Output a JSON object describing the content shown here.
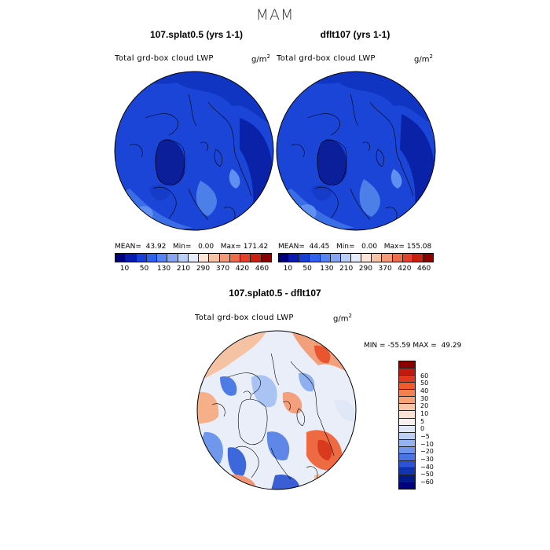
{
  "figure": {
    "season": "MAM"
  },
  "panels": [
    {
      "title": "107.splat0.5 (yrs 1-1)",
      "variable": "Total grd-box cloud LWP",
      "units_base": "g/m",
      "units_exp": "2",
      "mean_label": "MEAN=",
      "mean": "43.92",
      "min_label": "Min=",
      "min": "0.00",
      "max_label": "Max=",
      "max": "171.42"
    },
    {
      "title": "dflt107 (yrs 1-1)",
      "variable": "Total grd-box cloud LWP",
      "units_base": "g/m",
      "units_exp": "2",
      "mean_label": "MEAN=",
      "mean": "44.45",
      "min_label": "Min=",
      "min": "0.00",
      "max_label": "Max=",
      "max": "155.08"
    }
  ],
  "abs_colorbar": {
    "colors": [
      "#00007f",
      "#0a1bb0",
      "#1740d8",
      "#2e62ee",
      "#5585f2",
      "#86a6f4",
      "#b9cff7",
      "#e6ecfa",
      "#fde6d8",
      "#f9c3a6",
      "#f49a76",
      "#ee6d4a",
      "#e4412a",
      "#c9200f",
      "#8b0000"
    ],
    "ticks": [
      "10",
      "50",
      "130",
      "210",
      "290",
      "370",
      "420",
      "460"
    ]
  },
  "diff": {
    "title": "107.splat0.5 - dflt107",
    "variable": "Total grd-box cloud LWP",
    "units_base": "g/m",
    "units_exp": "2",
    "min_label": "MIN =",
    "min": "-55.59",
    "max_label": "MAX =",
    "max": "49.29",
    "colorbar": {
      "colors_top_to_bottom": [
        "#8b0000",
        "#c11a0e",
        "#e0391f",
        "#ef5a2e",
        "#f4804e",
        "#f7a276",
        "#f9c5a6",
        "#fbe2d3",
        "#f6f1f0",
        "#dde7f8",
        "#bcd0f4",
        "#95b3f0",
        "#6e94ec",
        "#4a74e6",
        "#2c52d6",
        "#1334b0",
        "#001a8a",
        "#00007f"
      ],
      "ticks_top_to_bottom": [
        "60",
        "50",
        "40",
        "30",
        "20",
        "10",
        "5",
        "0",
        "−5",
        "−10",
        "−20",
        "−30",
        "−40",
        "−50",
        "−60"
      ]
    }
  }
}
